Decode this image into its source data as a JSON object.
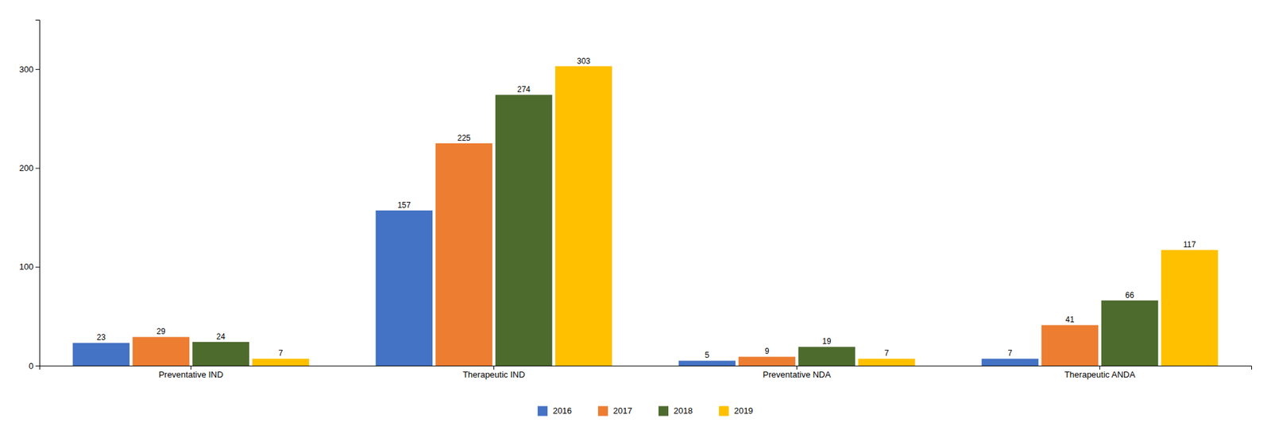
{
  "chart_data": {
    "type": "bar",
    "categories": [
      "Preventative IND",
      "Therapeutic IND",
      "Preventative NDA",
      "Therapeutic ANDA"
    ],
    "series": [
      {
        "name": "2016",
        "color": "#4472C4",
        "values": [
          23,
          157,
          5,
          7
        ]
      },
      {
        "name": "2017",
        "color": "#ED7D31",
        "values": [
          29,
          225,
          9,
          41
        ]
      },
      {
        "name": "2018",
        "color": "#4E6B2E",
        "values": [
          24,
          274,
          19,
          66
        ]
      },
      {
        "name": "2019",
        "color": "#FFC000",
        "values": [
          7,
          303,
          7,
          117
        ]
      }
    ],
    "ylim": [
      0,
      350
    ],
    "yticks": [
      0,
      100,
      200,
      300
    ],
    "grid": false,
    "legend": "bottom",
    "data_labels": true
  }
}
